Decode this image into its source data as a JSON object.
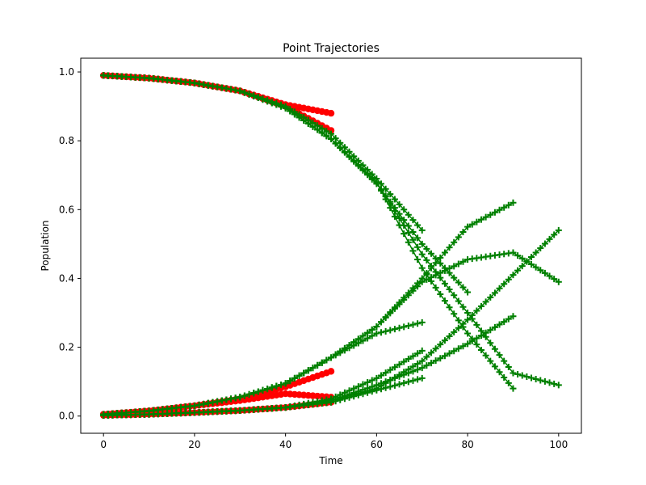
{
  "chart_data": {
    "type": "line",
    "title": "Point Trajectories",
    "xlabel": "Time",
    "ylabel": "Population",
    "xlim": [
      -5,
      105
    ],
    "ylim": [
      -0.05,
      1.04
    ],
    "xticks": [
      0,
      20,
      40,
      60,
      80,
      100
    ],
    "yticks": [
      0.0,
      0.2,
      0.4,
      0.6,
      0.8,
      1.0
    ],
    "grid": false,
    "legend": "none",
    "colors": {
      "past": "#ff0000",
      "future": "#008000",
      "axes": "#000000"
    },
    "markers": {
      "past": "circle",
      "future": "plus"
    },
    "series": [
      {
        "past": {
          "x": [
            0,
            10,
            20,
            30,
            40,
            50
          ],
          "y": [
            0.99,
            0.982,
            0.968,
            0.945,
            0.905,
            0.88
          ]
        },
        "future": {
          "x": [
            0,
            10,
            20,
            30,
            40,
            50,
            60,
            70
          ],
          "y": [
            0.99,
            0.982,
            0.968,
            0.945,
            0.9,
            0.82,
            0.69,
            0.54
          ]
        }
      },
      {
        "past": {
          "x": [
            0,
            10,
            20,
            30,
            40,
            50
          ],
          "y": [
            0.99,
            0.982,
            0.968,
            0.945,
            0.9,
            0.83
          ]
        },
        "future": {
          "x": [
            0,
            10,
            20,
            30,
            40,
            50,
            60,
            70,
            80,
            90,
            100
          ],
          "y": [
            0.99,
            0.982,
            0.968,
            0.945,
            0.895,
            0.805,
            0.68,
            0.47,
            0.3,
            0.125,
            0.09
          ]
        }
      },
      {
        "past": null,
        "future": {
          "x": [
            0,
            10,
            20,
            30,
            40,
            50,
            60,
            70,
            80,
            90
          ],
          "y": [
            0.99,
            0.982,
            0.968,
            0.945,
            0.895,
            0.805,
            0.68,
            0.43,
            0.24,
            0.08
          ]
        }
      },
      {
        "past": null,
        "future": {
          "x": [
            0,
            10,
            20,
            30,
            40,
            50,
            60,
            70,
            80
          ],
          "y": [
            0.99,
            0.982,
            0.968,
            0.945,
            0.895,
            0.805,
            0.675,
            0.5,
            0.36
          ]
        }
      },
      {
        "past": {
          "x": [
            0,
            10,
            20,
            30,
            40,
            50
          ],
          "y": [
            0.005,
            0.015,
            0.03,
            0.05,
            0.085,
            0.13
          ]
        },
        "future": {
          "x": [
            0,
            10,
            20,
            30,
            40,
            50,
            60,
            70,
            80,
            90
          ],
          "y": [
            0.005,
            0.015,
            0.03,
            0.055,
            0.095,
            0.17,
            0.26,
            0.4,
            0.55,
            0.62
          ]
        }
      },
      {
        "past": {
          "x": [
            0,
            10,
            20,
            30,
            40,
            50
          ],
          "y": [
            0.005,
            0.015,
            0.03,
            0.045,
            0.065,
            0.055
          ]
        },
        "future": {
          "x": [
            0,
            10,
            20,
            30,
            40,
            50,
            60,
            70,
            80,
            90,
            100
          ],
          "y": [
            0.005,
            0.015,
            0.03,
            0.055,
            0.095,
            0.17,
            0.26,
            0.39,
            0.455,
            0.475,
            0.39
          ]
        }
      },
      {
        "past": null,
        "future": {
          "x": [
            0,
            10,
            20,
            30,
            40,
            50,
            60,
            70
          ],
          "y": [
            0.005,
            0.015,
            0.03,
            0.055,
            0.095,
            0.17,
            0.24,
            0.272
          ]
        }
      },
      {
        "past": {
          "x": [
            0,
            10,
            20,
            30,
            40,
            50
          ],
          "y": [
            0.002,
            0.005,
            0.01,
            0.016,
            0.025,
            0.04
          ]
        },
        "future": {
          "x": [
            0,
            10,
            20,
            30,
            40,
            50,
            60,
            70,
            80,
            90,
            100
          ],
          "y": [
            0.002,
            0.005,
            0.01,
            0.016,
            0.025,
            0.045,
            0.08,
            0.16,
            0.28,
            0.41,
            0.54
          ]
        }
      },
      {
        "past": null,
        "future": {
          "x": [
            0,
            10,
            20,
            30,
            40,
            50,
            60,
            70
          ],
          "y": [
            0.002,
            0.005,
            0.01,
            0.016,
            0.025,
            0.05,
            0.11,
            0.19
          ]
        }
      },
      {
        "past": null,
        "future": {
          "x": [
            0,
            10,
            20,
            30,
            40,
            50,
            60,
            70,
            80,
            90
          ],
          "y": [
            0.002,
            0.005,
            0.01,
            0.016,
            0.025,
            0.045,
            0.09,
            0.14,
            0.21,
            0.29
          ]
        }
      },
      {
        "past": null,
        "future": {
          "x": [
            0,
            10,
            20,
            30,
            40,
            50,
            60,
            70
          ],
          "y": [
            0.002,
            0.005,
            0.01,
            0.016,
            0.025,
            0.04,
            0.075,
            0.11
          ]
        }
      }
    ]
  }
}
